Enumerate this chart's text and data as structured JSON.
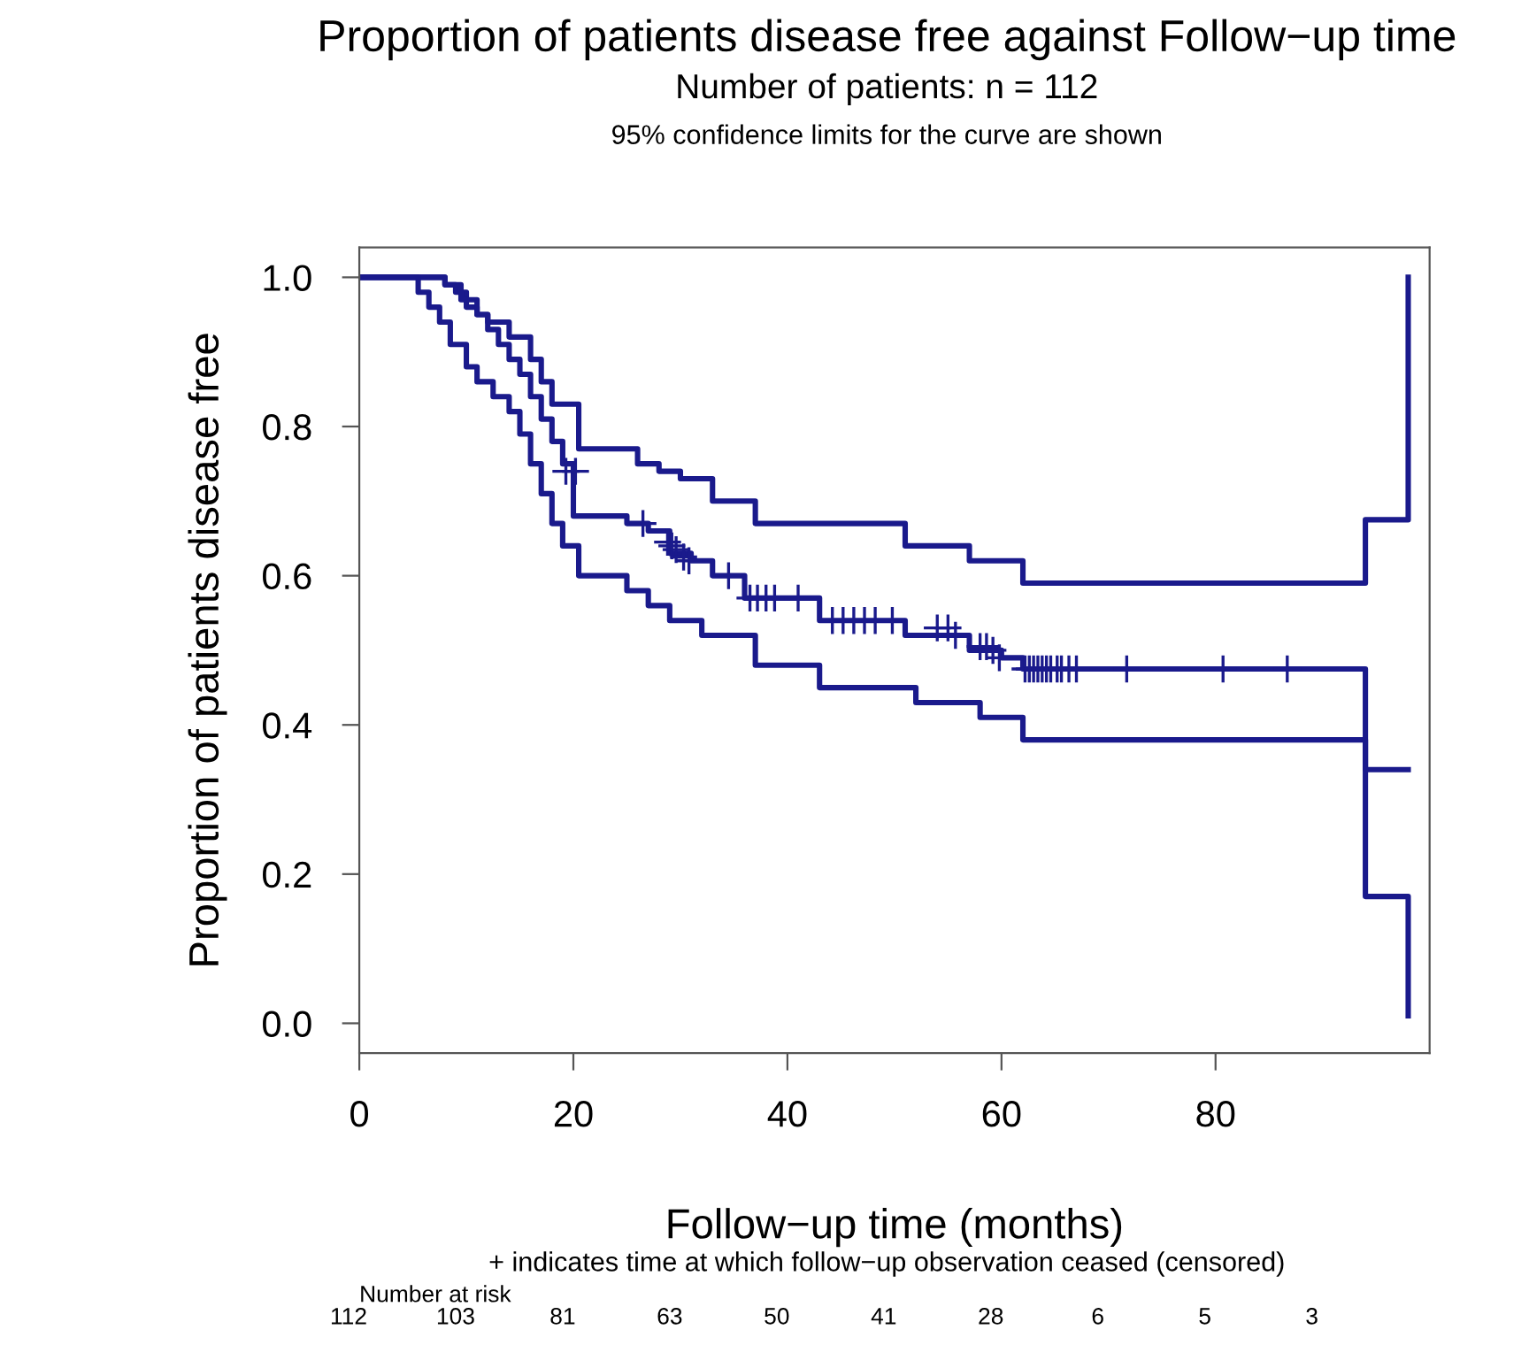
{
  "chart_data": {
    "type": "step",
    "title": "Proportion of patients disease free against Follow−up time",
    "subtitle": "Number of patients: n = 112",
    "xlabel": "Follow−up time (months)",
    "ylabel": "Proportion of patients disease free",
    "annotations": [
      "95% confidence limits for the curve are shown",
      "+ indicates time at which follow−up observation ceased (censored)",
      "Number at risk",
      "112",
      "103",
      "81",
      "63",
      "50",
      "41",
      "28",
      "6",
      "5",
      "3"
    ],
    "xlim": [
      0,
      100
    ],
    "xticks": [
      0,
      20,
      40,
      60,
      80
    ],
    "ylim": [
      -0.04,
      1.04
    ],
    "yticks": [
      {
        "value": 0,
        "label": "0.0"
      },
      0.2,
      0.4,
      0.6,
      0.8,
      {
        "value": 1,
        "label": "1.0"
      }
    ],
    "grid": false,
    "legend": false,
    "series": [
      {
        "color": "#1a1a8c",
        "x": [
          0,
          8,
          9,
          10,
          11,
          12,
          13,
          14,
          15,
          16,
          17,
          18,
          19,
          20,
          25,
          27,
          29,
          31,
          33,
          36,
          43,
          51,
          57,
          60,
          62,
          94,
          98
        ],
        "values": [
          1.0,
          0.99,
          0.98,
          0.96,
          0.95,
          0.93,
          0.91,
          0.89,
          0.87,
          0.84,
          0.81,
          0.78,
          0.75,
          0.68,
          0.67,
          0.66,
          0.63,
          0.62,
          0.6,
          0.57,
          0.54,
          0.52,
          0.5,
          0.49,
          0.475,
          0.34,
          0.34
        ]
      },
      {
        "color": "#1a1a8c",
        "x": [
          0,
          8,
          9.5,
          11,
          12,
          14,
          16,
          17,
          18,
          20.5,
          26,
          28,
          30,
          33,
          37,
          51,
          57,
          62,
          94,
          98
        ],
        "values": [
          1.0,
          0.99,
          0.97,
          0.95,
          0.94,
          0.92,
          0.89,
          0.86,
          0.83,
          0.77,
          0.75,
          0.74,
          0.73,
          0.7,
          0.67,
          0.64,
          0.62,
          0.59,
          0.675,
          1.0
        ]
      },
      {
        "color": "#1a1a8c",
        "x": [
          0,
          5.5,
          6.5,
          7.5,
          8.5,
          10,
          11,
          12.5,
          14,
          15,
          16,
          17,
          18,
          19,
          20.5,
          25,
          27,
          29,
          32,
          37,
          43,
          52,
          58,
          62,
          94,
          98
        ],
        "values": [
          1.0,
          0.98,
          0.96,
          0.94,
          0.91,
          0.88,
          0.86,
          0.84,
          0.82,
          0.79,
          0.75,
          0.71,
          0.67,
          0.64,
          0.6,
          0.58,
          0.56,
          0.54,
          0.52,
          0.48,
          0.45,
          0.43,
          0.41,
          0.38,
          0.17,
          0.01
        ]
      },
      {
        "type": "scatter",
        "marker": "cross",
        "color": "#1a1a8c",
        "x": [
          19.3,
          20.2,
          26.5,
          28.8,
          29.2,
          29.6,
          30.3,
          30.8,
          34.5,
          36.5,
          37.2,
          38.0,
          38.8,
          41.0,
          44.2,
          45.2,
          46.2,
          47.2,
          48.2,
          49.8,
          54.0,
          55.0,
          55.7,
          58.0,
          58.6,
          59.2,
          59.8,
          62.2,
          62.6,
          63.0,
          63.4,
          63.8,
          64.2,
          64.6,
          65.2,
          65.6,
          66.3,
          67.0,
          71.7,
          80.7,
          86.7
        ],
        "values": [
          0.74,
          0.74,
          0.67,
          0.645,
          0.64,
          0.635,
          0.625,
          0.62,
          0.6,
          0.57,
          0.57,
          0.57,
          0.57,
          0.57,
          0.54,
          0.54,
          0.54,
          0.54,
          0.54,
          0.54,
          0.53,
          0.53,
          0.52,
          0.505,
          0.505,
          0.5,
          0.49,
          0.475,
          0.475,
          0.475,
          0.475,
          0.475,
          0.475,
          0.475,
          0.475,
          0.475,
          0.475,
          0.475,
          0.475,
          0.475,
          0.475
        ]
      }
    ]
  }
}
